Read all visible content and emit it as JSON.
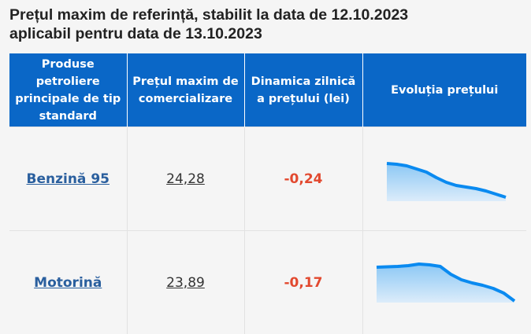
{
  "title_line1": "Prețul maxim de referință, stabilit la data de 12.10.2023",
  "title_line2": "aplicabil pentru data de 13.10.2023",
  "headers": [
    "Produse petroliere principale de tip standard",
    "Prețul maxim de comercializare",
    "Dinamica zilnică a prețului (lei)",
    "Evoluția prețului"
  ],
  "colors": {
    "header_bg": "#0a67c7",
    "line": "#0a8af0",
    "negative": "#e2492f",
    "link": "#2a5f9e"
  },
  "rows": [
    {
      "product": "Benzină 95",
      "price": "24,28",
      "dynamic": "-0,24",
      "trend": [
        48,
        47,
        45,
        41,
        37,
        30,
        24,
        20,
        18,
        16,
        13,
        9,
        5
      ]
    },
    {
      "product": "Motorină",
      "price": "23,89",
      "dynamic": "-0,17",
      "trend": [
        45,
        45.5,
        46,
        47,
        49,
        48,
        46,
        36,
        29,
        25,
        22,
        18,
        12,
        2
      ]
    }
  ]
}
